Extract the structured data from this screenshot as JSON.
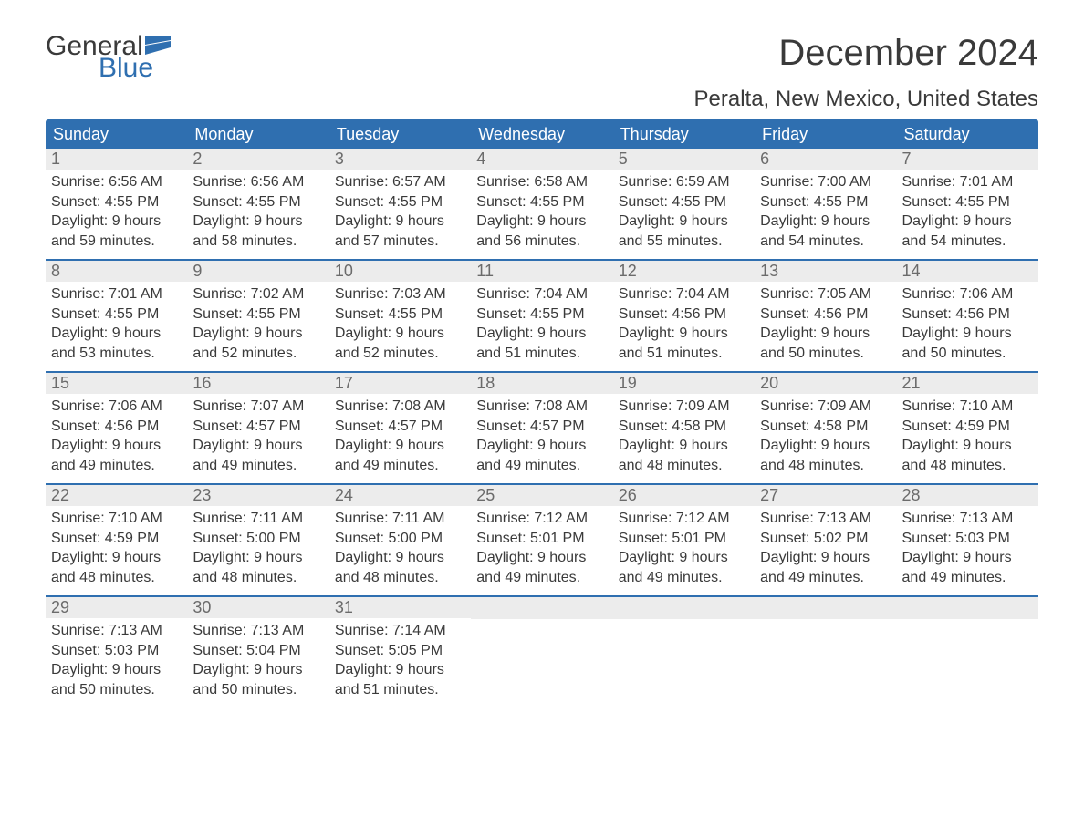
{
  "logo": {
    "text1": "General",
    "text2": "Blue",
    "flag_fill": "#2f6fb0"
  },
  "header": {
    "month_title": "December 2024",
    "location": "Peralta, New Mexico, United States"
  },
  "colors": {
    "header_bg": "#2f6fb0",
    "header_text": "#ffffff",
    "daynum_bg": "#ececec",
    "daynum_text": "#6b6b6b",
    "body_text": "#3a3a3a",
    "week_border": "#2f6fb0",
    "page_bg": "#ffffff"
  },
  "day_labels": [
    "Sunday",
    "Monday",
    "Tuesday",
    "Wednesday",
    "Thursday",
    "Friday",
    "Saturday"
  ],
  "weeks": [
    [
      {
        "n": "1",
        "sunrise": "Sunrise: 6:56 AM",
        "sunset": "Sunset: 4:55 PM",
        "dl1": "Daylight: 9 hours",
        "dl2": "and 59 minutes."
      },
      {
        "n": "2",
        "sunrise": "Sunrise: 6:56 AM",
        "sunset": "Sunset: 4:55 PM",
        "dl1": "Daylight: 9 hours",
        "dl2": "and 58 minutes."
      },
      {
        "n": "3",
        "sunrise": "Sunrise: 6:57 AM",
        "sunset": "Sunset: 4:55 PM",
        "dl1": "Daylight: 9 hours",
        "dl2": "and 57 minutes."
      },
      {
        "n": "4",
        "sunrise": "Sunrise: 6:58 AM",
        "sunset": "Sunset: 4:55 PM",
        "dl1": "Daylight: 9 hours",
        "dl2": "and 56 minutes."
      },
      {
        "n": "5",
        "sunrise": "Sunrise: 6:59 AM",
        "sunset": "Sunset: 4:55 PM",
        "dl1": "Daylight: 9 hours",
        "dl2": "and 55 minutes."
      },
      {
        "n": "6",
        "sunrise": "Sunrise: 7:00 AM",
        "sunset": "Sunset: 4:55 PM",
        "dl1": "Daylight: 9 hours",
        "dl2": "and 54 minutes."
      },
      {
        "n": "7",
        "sunrise": "Sunrise: 7:01 AM",
        "sunset": "Sunset: 4:55 PM",
        "dl1": "Daylight: 9 hours",
        "dl2": "and 54 minutes."
      }
    ],
    [
      {
        "n": "8",
        "sunrise": "Sunrise: 7:01 AM",
        "sunset": "Sunset: 4:55 PM",
        "dl1": "Daylight: 9 hours",
        "dl2": "and 53 minutes."
      },
      {
        "n": "9",
        "sunrise": "Sunrise: 7:02 AM",
        "sunset": "Sunset: 4:55 PM",
        "dl1": "Daylight: 9 hours",
        "dl2": "and 52 minutes."
      },
      {
        "n": "10",
        "sunrise": "Sunrise: 7:03 AM",
        "sunset": "Sunset: 4:55 PM",
        "dl1": "Daylight: 9 hours",
        "dl2": "and 52 minutes."
      },
      {
        "n": "11",
        "sunrise": "Sunrise: 7:04 AM",
        "sunset": "Sunset: 4:55 PM",
        "dl1": "Daylight: 9 hours",
        "dl2": "and 51 minutes."
      },
      {
        "n": "12",
        "sunrise": "Sunrise: 7:04 AM",
        "sunset": "Sunset: 4:56 PM",
        "dl1": "Daylight: 9 hours",
        "dl2": "and 51 minutes."
      },
      {
        "n": "13",
        "sunrise": "Sunrise: 7:05 AM",
        "sunset": "Sunset: 4:56 PM",
        "dl1": "Daylight: 9 hours",
        "dl2": "and 50 minutes."
      },
      {
        "n": "14",
        "sunrise": "Sunrise: 7:06 AM",
        "sunset": "Sunset: 4:56 PM",
        "dl1": "Daylight: 9 hours",
        "dl2": "and 50 minutes."
      }
    ],
    [
      {
        "n": "15",
        "sunrise": "Sunrise: 7:06 AM",
        "sunset": "Sunset: 4:56 PM",
        "dl1": "Daylight: 9 hours",
        "dl2": "and 49 minutes."
      },
      {
        "n": "16",
        "sunrise": "Sunrise: 7:07 AM",
        "sunset": "Sunset: 4:57 PM",
        "dl1": "Daylight: 9 hours",
        "dl2": "and 49 minutes."
      },
      {
        "n": "17",
        "sunrise": "Sunrise: 7:08 AM",
        "sunset": "Sunset: 4:57 PM",
        "dl1": "Daylight: 9 hours",
        "dl2": "and 49 minutes."
      },
      {
        "n": "18",
        "sunrise": "Sunrise: 7:08 AM",
        "sunset": "Sunset: 4:57 PM",
        "dl1": "Daylight: 9 hours",
        "dl2": "and 49 minutes."
      },
      {
        "n": "19",
        "sunrise": "Sunrise: 7:09 AM",
        "sunset": "Sunset: 4:58 PM",
        "dl1": "Daylight: 9 hours",
        "dl2": "and 48 minutes."
      },
      {
        "n": "20",
        "sunrise": "Sunrise: 7:09 AM",
        "sunset": "Sunset: 4:58 PM",
        "dl1": "Daylight: 9 hours",
        "dl2": "and 48 minutes."
      },
      {
        "n": "21",
        "sunrise": "Sunrise: 7:10 AM",
        "sunset": "Sunset: 4:59 PM",
        "dl1": "Daylight: 9 hours",
        "dl2": "and 48 minutes."
      }
    ],
    [
      {
        "n": "22",
        "sunrise": "Sunrise: 7:10 AM",
        "sunset": "Sunset: 4:59 PM",
        "dl1": "Daylight: 9 hours",
        "dl2": "and 48 minutes."
      },
      {
        "n": "23",
        "sunrise": "Sunrise: 7:11 AM",
        "sunset": "Sunset: 5:00 PM",
        "dl1": "Daylight: 9 hours",
        "dl2": "and 48 minutes."
      },
      {
        "n": "24",
        "sunrise": "Sunrise: 7:11 AM",
        "sunset": "Sunset: 5:00 PM",
        "dl1": "Daylight: 9 hours",
        "dl2": "and 48 minutes."
      },
      {
        "n": "25",
        "sunrise": "Sunrise: 7:12 AM",
        "sunset": "Sunset: 5:01 PM",
        "dl1": "Daylight: 9 hours",
        "dl2": "and 49 minutes."
      },
      {
        "n": "26",
        "sunrise": "Sunrise: 7:12 AM",
        "sunset": "Sunset: 5:01 PM",
        "dl1": "Daylight: 9 hours",
        "dl2": "and 49 minutes."
      },
      {
        "n": "27",
        "sunrise": "Sunrise: 7:13 AM",
        "sunset": "Sunset: 5:02 PM",
        "dl1": "Daylight: 9 hours",
        "dl2": "and 49 minutes."
      },
      {
        "n": "28",
        "sunrise": "Sunrise: 7:13 AM",
        "sunset": "Sunset: 5:03 PM",
        "dl1": "Daylight: 9 hours",
        "dl2": "and 49 minutes."
      }
    ],
    [
      {
        "n": "29",
        "sunrise": "Sunrise: 7:13 AM",
        "sunset": "Sunset: 5:03 PM",
        "dl1": "Daylight: 9 hours",
        "dl2": "and 50 minutes."
      },
      {
        "n": "30",
        "sunrise": "Sunrise: 7:13 AM",
        "sunset": "Sunset: 5:04 PM",
        "dl1": "Daylight: 9 hours",
        "dl2": "and 50 minutes."
      },
      {
        "n": "31",
        "sunrise": "Sunrise: 7:14 AM",
        "sunset": "Sunset: 5:05 PM",
        "dl1": "Daylight: 9 hours",
        "dl2": "and 51 minutes."
      },
      {
        "empty": true
      },
      {
        "empty": true
      },
      {
        "empty": true
      },
      {
        "empty": true
      }
    ]
  ]
}
